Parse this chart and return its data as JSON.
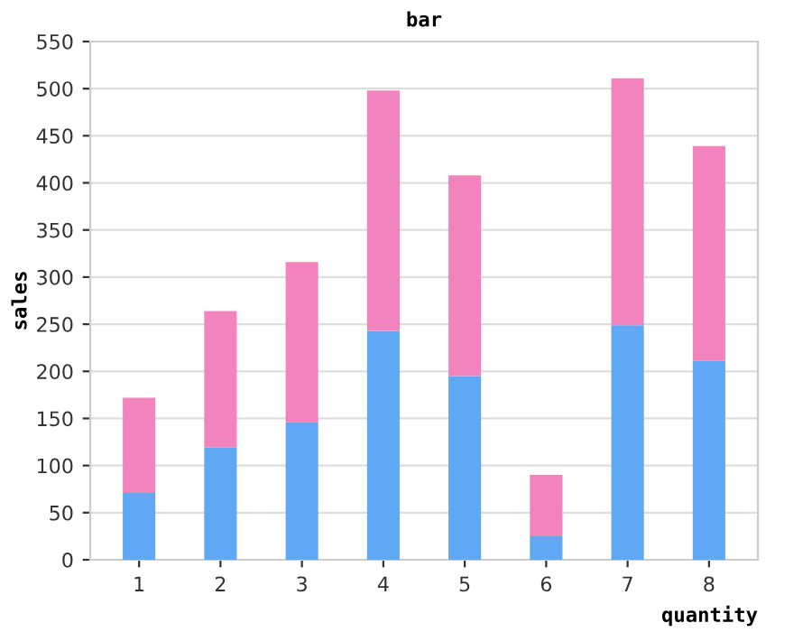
{
  "chart_data": {
    "type": "bar",
    "title": "bar",
    "xlabel": "quantity",
    "ylabel": "sales",
    "stacked": true,
    "categories": [
      "1",
      "2",
      "3",
      "4",
      "5",
      "6",
      "7",
      "8"
    ],
    "series": [
      {
        "color": "#5fa8f3",
        "values": [
          71,
          119,
          146,
          243,
          195,
          25,
          249,
          211
        ]
      },
      {
        "color": "#f283bd",
        "values": [
          101,
          145,
          170,
          255,
          213,
          65,
          262,
          228
        ]
      }
    ],
    "ylim": [
      0,
      550
    ],
    "yticks": [
      0,
      50,
      100,
      150,
      200,
      250,
      300,
      350,
      400,
      450,
      500,
      550
    ],
    "grid": "y",
    "legend": false
  }
}
